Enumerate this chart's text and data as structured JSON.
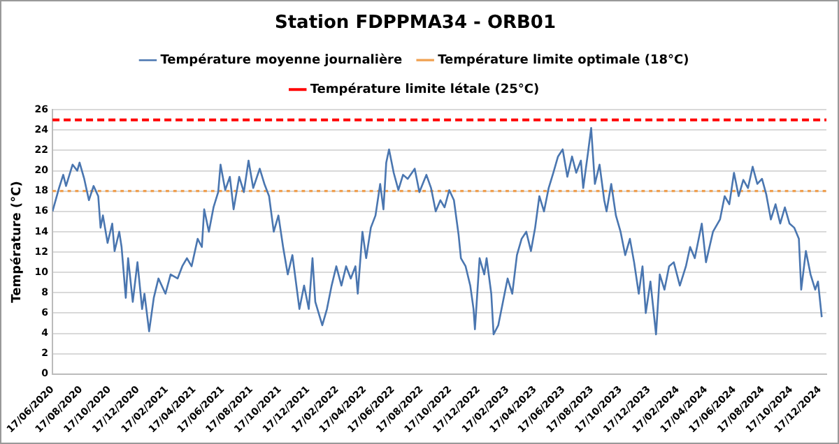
{
  "chart_data": {
    "type": "line",
    "title": "Station FDPPMA34 - ORB01",
    "ylabel": "Température (°C)",
    "xlim": [
      "2020-06-17",
      "2024-12-31"
    ],
    "ylim": [
      0,
      26
    ],
    "yticks": [
      0,
      2,
      4,
      6,
      8,
      10,
      12,
      14,
      16,
      18,
      20,
      22,
      24,
      26
    ],
    "xticks": [
      {
        "value": "2020-06-17",
        "label": "17/06/2020"
      },
      {
        "value": "2020-08-17",
        "label": "17/08/2020"
      },
      {
        "value": "2020-10-17",
        "label": "17/10/2020"
      },
      {
        "value": "2020-12-17",
        "label": "17/12/2020"
      },
      {
        "value": "2021-02-17",
        "label": "17/02/2021"
      },
      {
        "value": "2021-04-17",
        "label": "17/04/2021"
      },
      {
        "value": "2021-06-17",
        "label": "17/06/2021"
      },
      {
        "value": "2021-08-17",
        "label": "17/08/2021"
      },
      {
        "value": "2021-10-17",
        "label": "17/10/2021"
      },
      {
        "value": "2021-12-17",
        "label": "17/12/2021"
      },
      {
        "value": "2022-02-17",
        "label": "17/02/2022"
      },
      {
        "value": "2022-04-17",
        "label": "17/04/2022"
      },
      {
        "value": "2022-06-17",
        "label": "17/06/2022"
      },
      {
        "value": "2022-08-17",
        "label": "17/08/2022"
      },
      {
        "value": "2022-10-17",
        "label": "17/10/2022"
      },
      {
        "value": "2022-12-17",
        "label": "17/12/2022"
      },
      {
        "value": "2023-02-17",
        "label": "17/02/2023"
      },
      {
        "value": "2023-04-17",
        "label": "17/04/2023"
      },
      {
        "value": "2023-06-17",
        "label": "17/06/2023"
      },
      {
        "value": "2023-08-17",
        "label": "17/08/2023"
      },
      {
        "value": "2023-10-17",
        "label": "17/10/2023"
      },
      {
        "value": "2023-12-17",
        "label": "17/12/2023"
      },
      {
        "value": "2024-02-17",
        "label": "17/02/2024"
      },
      {
        "value": "2024-04-17",
        "label": "17/04/2024"
      },
      {
        "value": "2024-06-17",
        "label": "17/06/2024"
      },
      {
        "value": "2024-08-17",
        "label": "17/08/2024"
      },
      {
        "value": "2024-10-17",
        "label": "17/10/2024"
      },
      {
        "value": "2024-12-17",
        "label": "17/12/2024"
      }
    ],
    "grid": "y",
    "legend": "top",
    "marker": "none",
    "line_style": "solid",
    "series": [
      {
        "name": "Température moyenne journalière",
        "color": "#4a76b0",
        "x": [
          "2020-06-17",
          "2020-07-01",
          "2020-07-10",
          "2020-07-16",
          "2020-07-30",
          "2020-08-09",
          "2020-08-14",
          "2020-08-24",
          "2020-09-03",
          "2020-09-13",
          "2020-09-23",
          "2020-09-28",
          "2020-10-03",
          "2020-10-13",
          "2020-10-23",
          "2020-10-28",
          "2020-11-07",
          "2020-11-12",
          "2020-11-21",
          "2020-11-26",
          "2020-12-06",
          "2020-12-16",
          "2020-12-26",
          "2020-12-31",
          "2021-01-10",
          "2021-01-20",
          "2021-01-30",
          "2021-02-14",
          "2021-02-25",
          "2021-03-12",
          "2021-03-22",
          "2021-04-01",
          "2021-04-11",
          "2021-04-24",
          "2021-05-03",
          "2021-05-08",
          "2021-05-18",
          "2021-05-28",
          "2021-06-07",
          "2021-06-12",
          "2021-06-22",
          "2021-07-02",
          "2021-07-10",
          "2021-07-22",
          "2021-08-01",
          "2021-08-11",
          "2021-08-21",
          "2021-09-04",
          "2021-09-14",
          "2021-09-24",
          "2021-10-04",
          "2021-10-14",
          "2021-10-24",
          "2021-11-03",
          "2021-11-13",
          "2021-11-28",
          "2021-12-08",
          "2021-12-18",
          "2021-12-26",
          "2022-01-01",
          "2022-01-16",
          "2022-01-26",
          "2022-02-05",
          "2022-02-15",
          "2022-02-26",
          "2022-03-08",
          "2022-03-18",
          "2022-03-28",
          "2022-04-02",
          "2022-04-12",
          "2022-04-20",
          "2022-04-30",
          "2022-05-10",
          "2022-05-20",
          "2022-05-27",
          "2022-06-02",
          "2022-06-08",
          "2022-06-18",
          "2022-06-28",
          "2022-07-08",
          "2022-07-18",
          "2022-08-02",
          "2022-08-12",
          "2022-08-27",
          "2022-09-06",
          "2022-09-16",
          "2022-09-26",
          "2022-10-05",
          "2022-10-15",
          "2022-10-25",
          "2022-11-04",
          "2022-11-09",
          "2022-11-19",
          "2022-11-29",
          "2022-12-06",
          "2022-12-09",
          "2022-12-19",
          "2022-12-29",
          "2023-01-03",
          "2023-01-13",
          "2023-01-18",
          "2023-01-28",
          "2023-02-07",
          "2023-02-17",
          "2023-02-27",
          "2023-03-09",
          "2023-03-19",
          "2023-03-29",
          "2023-04-08",
          "2023-04-17",
          "2023-04-26",
          "2023-05-06",
          "2023-05-16",
          "2023-05-26",
          "2023-06-05",
          "2023-06-15",
          "2023-06-25",
          "2023-07-05",
          "2023-07-14",
          "2023-07-24",
          "2023-07-29",
          "2023-08-08",
          "2023-08-15",
          "2023-08-23",
          "2023-09-02",
          "2023-09-12",
          "2023-09-17",
          "2023-09-27",
          "2023-10-07",
          "2023-10-17",
          "2023-10-27",
          "2023-11-06",
          "2023-11-15",
          "2023-11-25",
          "2023-12-03",
          "2023-12-10",
          "2023-12-20",
          "2024-01-01",
          "2024-01-09",
          "2024-01-19",
          "2024-01-29",
          "2024-02-08",
          "2024-02-21",
          "2024-03-05",
          "2024-03-14",
          "2024-03-24",
          "2024-04-08",
          "2024-04-17",
          "2024-05-02",
          "2024-05-17",
          "2024-05-27",
          "2024-06-06",
          "2024-06-16",
          "2024-06-26",
          "2024-07-06",
          "2024-07-16",
          "2024-07-26",
          "2024-08-05",
          "2024-08-15",
          "2024-08-24",
          "2024-09-03",
          "2024-09-13",
          "2024-09-23",
          "2024-10-03",
          "2024-10-13",
          "2024-10-23",
          "2024-11-02",
          "2024-11-07",
          "2024-11-17",
          "2024-11-27",
          "2024-12-07",
          "2024-12-13",
          "2024-12-21"
        ],
        "values": [
          16.0,
          18.3,
          19.6,
          18.5,
          20.6,
          20.0,
          20.8,
          19.2,
          17.1,
          18.5,
          17.5,
          14.4,
          15.6,
          12.9,
          14.8,
          12.1,
          14.0,
          12.5,
          7.5,
          11.4,
          7.1,
          11.0,
          6.4,
          7.9,
          4.2,
          7.5,
          9.4,
          7.9,
          9.8,
          9.4,
          10.6,
          11.4,
          10.6,
          13.3,
          12.5,
          16.2,
          14.0,
          16.4,
          17.9,
          20.6,
          18.1,
          19.4,
          16.2,
          19.4,
          17.9,
          21.0,
          18.3,
          20.2,
          18.7,
          17.5,
          14.0,
          15.6,
          12.5,
          9.8,
          11.7,
          6.4,
          8.7,
          6.4,
          11.4,
          7.1,
          4.8,
          6.4,
          8.7,
          10.6,
          8.7,
          10.6,
          9.4,
          10.6,
          7.9,
          14.0,
          11.4,
          14.4,
          15.6,
          18.7,
          16.2,
          20.8,
          22.1,
          19.8,
          18.1,
          19.6,
          19.2,
          20.2,
          17.9,
          19.6,
          18.3,
          16.0,
          17.1,
          16.4,
          18.1,
          17.1,
          13.7,
          11.4,
          10.6,
          8.7,
          6.4,
          4.4,
          11.4,
          9.8,
          11.4,
          7.9,
          3.9,
          4.8,
          7.1,
          9.4,
          7.9,
          11.7,
          13.3,
          14.0,
          12.1,
          14.4,
          17.5,
          16.0,
          18.3,
          19.8,
          21.4,
          22.1,
          19.4,
          21.4,
          19.8,
          21.0,
          18.3,
          21.7,
          24.2,
          18.7,
          20.6,
          17.1,
          16.0,
          18.7,
          15.6,
          14.0,
          11.7,
          13.3,
          11.0,
          7.9,
          10.6,
          6.0,
          9.1,
          3.9,
          9.8,
          8.3,
          10.6,
          11.0,
          8.7,
          10.6,
          12.5,
          11.4,
          14.8,
          11.0,
          14.0,
          15.2,
          17.5,
          16.7,
          19.8,
          17.5,
          19.1,
          18.3,
          20.4,
          18.7,
          19.2,
          17.7,
          15.2,
          16.7,
          14.8,
          16.4,
          14.8,
          14.4,
          13.3,
          8.3,
          12.1,
          9.8,
          8.3,
          9.1,
          5.6
        ]
      }
    ],
    "ref_lines": [
      {
        "axis": "y",
        "value": 18,
        "label": "Température limite optimale (18°C)",
        "color": "#f0a050",
        "line_style": "dotted"
      },
      {
        "axis": "y",
        "value": 25,
        "label": "Température limite létale (25°C)",
        "color": "#ff0000",
        "line_style": "dashed"
      }
    ]
  }
}
